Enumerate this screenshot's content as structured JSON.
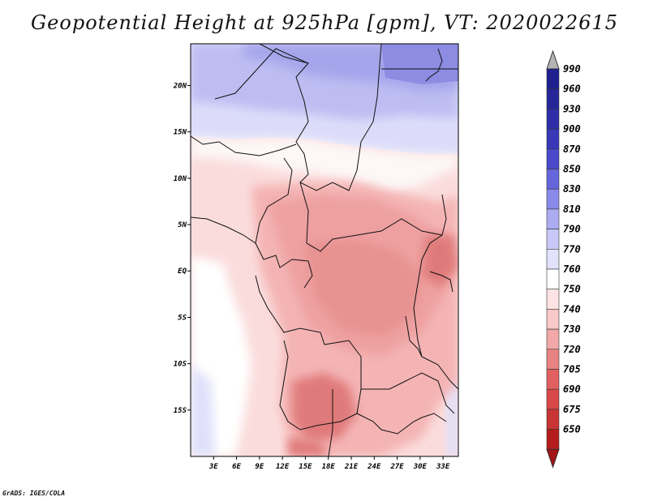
{
  "title": "Geopotential Height at 925hPa [gpm], VT: 2020022615",
  "credit": "GrADS: IGES/COLA",
  "map": {
    "lon_range": [
      0,
      35
    ],
    "lat_range": [
      -20,
      24.5
    ],
    "lat_ticks": [
      {
        "value": 20,
        "label": "20N"
      },
      {
        "value": 15,
        "label": "15N"
      },
      {
        "value": 10,
        "label": "10N"
      },
      {
        "value": 5,
        "label": "5N"
      },
      {
        "value": 0,
        "label": "EQ"
      },
      {
        "value": -5,
        "label": "5S"
      },
      {
        "value": -10,
        "label": "10S"
      },
      {
        "value": -15,
        "label": "15S"
      }
    ],
    "lon_ticks": [
      {
        "value": 3,
        "label": "3E"
      },
      {
        "value": 6,
        "label": "6E"
      },
      {
        "value": 9,
        "label": "9E"
      },
      {
        "value": 12,
        "label": "12E"
      },
      {
        "value": 15,
        "label": "15E"
      },
      {
        "value": 18,
        "label": "18E"
      },
      {
        "value": 21,
        "label": "21E"
      },
      {
        "value": 24,
        "label": "24E"
      },
      {
        "value": 27,
        "label": "27E"
      },
      {
        "value": 30,
        "label": "30E"
      },
      {
        "value": 33,
        "label": "33E"
      }
    ]
  },
  "colorbar": {
    "levels": [
      {
        "label": "990",
        "color": "#1f1f8f"
      },
      {
        "label": "960",
        "color": "#262699"
      },
      {
        "label": "930",
        "color": "#2e2ea8"
      },
      {
        "label": "900",
        "color": "#3838b8"
      },
      {
        "label": "870",
        "color": "#4a4acb"
      },
      {
        "label": "850",
        "color": "#6565dc"
      },
      {
        "label": "830",
        "color": "#8a8aeb"
      },
      {
        "label": "810",
        "color": "#acacf3"
      },
      {
        "label": "790",
        "color": "#c8c8f8"
      },
      {
        "label": "770",
        "color": "#e2e2fb"
      },
      {
        "label": "760",
        "color": "#ffffff"
      },
      {
        "label": "750",
        "color": "#fde3e3"
      },
      {
        "label": "740",
        "color": "#f9c8c8"
      },
      {
        "label": "730",
        "color": "#f2a8a8"
      },
      {
        "label": "720",
        "color": "#e98282"
      },
      {
        "label": "705",
        "color": "#e26060"
      },
      {
        "label": "690",
        "color": "#d84848"
      },
      {
        "label": "675",
        "color": "#c93434"
      },
      {
        "label": "650",
        "color": "#b51d1d"
      }
    ],
    "top_triangle_color": "#b4b4b4",
    "bottom_triangle_color": "#a31414"
  }
}
